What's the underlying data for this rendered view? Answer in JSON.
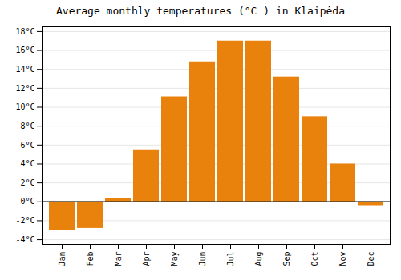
{
  "chart_data": {
    "type": "bar",
    "title": "Average monthly temperatures (°C ) in Klaipėda",
    "categories": [
      "Jan",
      "Feb",
      "Mar",
      "Apr",
      "May",
      "Jun",
      "Jul",
      "Aug",
      "Sep",
      "Oct",
      "Nov",
      "Dec"
    ],
    "values": [
      -3.0,
      -2.8,
      0.4,
      5.5,
      11.1,
      14.8,
      17.0,
      17.0,
      13.2,
      9.0,
      4.0,
      -0.4
    ],
    "color": "#E8820C",
    "ylim": [
      -4.5,
      18.5
    ],
    "yticks": [
      {
        "value": -4,
        "label": "-4°C"
      },
      {
        "value": -2,
        "label": "-2°C"
      },
      {
        "value": 0,
        "label": "0°C"
      },
      {
        "value": 2,
        "label": "2°C"
      },
      {
        "value": 4,
        "label": "4°C"
      },
      {
        "value": 6,
        "label": "6°C"
      },
      {
        "value": 8,
        "label": "8°C"
      },
      {
        "value": 10,
        "label": "10°C"
      },
      {
        "value": 12,
        "label": "12°C"
      },
      {
        "value": 14,
        "label": "14°C"
      },
      {
        "value": 16,
        "label": "16°C"
      },
      {
        "value": 18,
        "label": "18°C"
      }
    ],
    "grid": true
  }
}
